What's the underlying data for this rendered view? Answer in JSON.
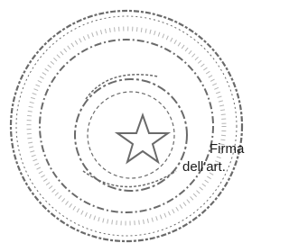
{
  "document": {
    "text_lines": [
      "Firma",
      "dell'art."
    ]
  }
}
